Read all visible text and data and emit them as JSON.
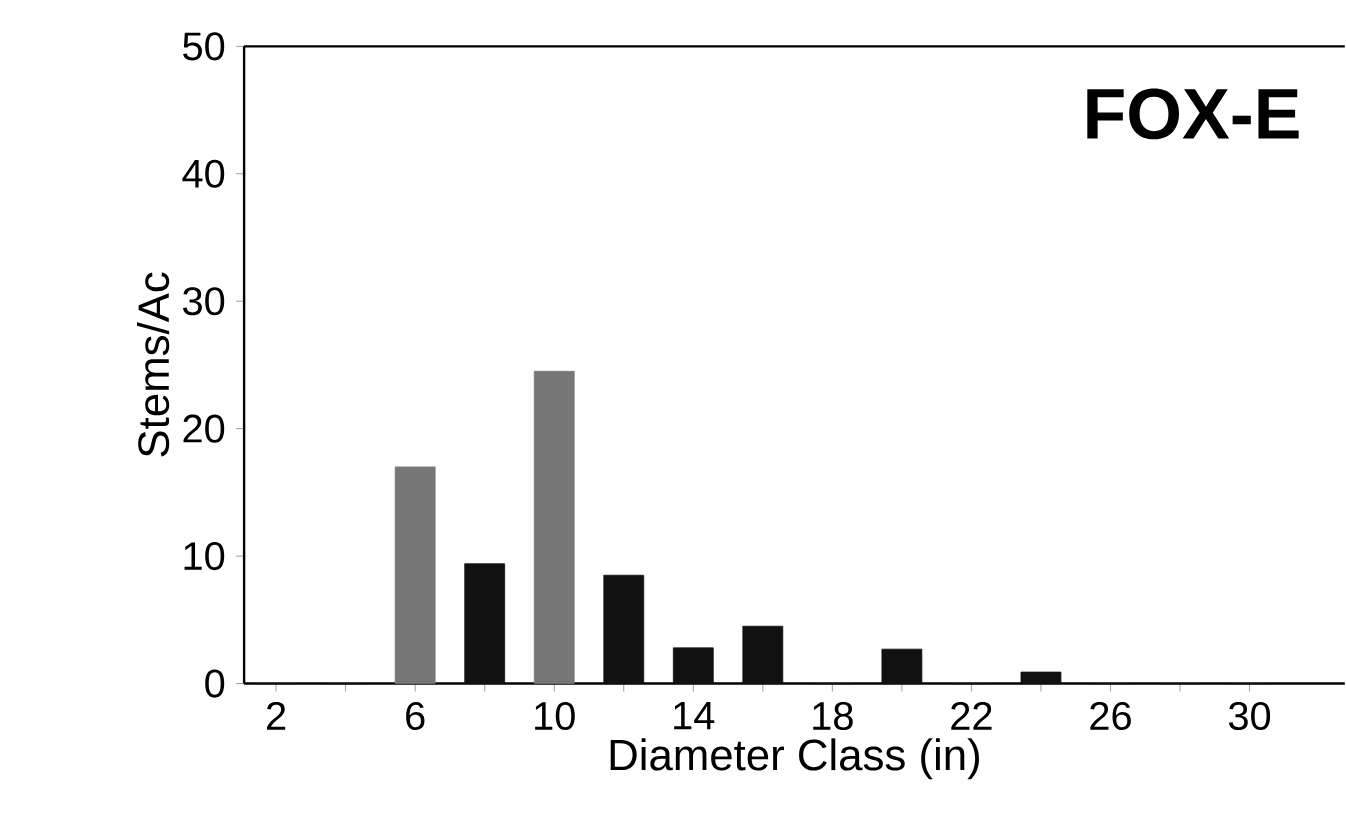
{
  "chart_data": {
    "type": "bar",
    "title": "FOX-E",
    "xlabel": "Diameter Class (in)",
    "ylabel": "Stems/Ac",
    "categories": [
      "2",
      null,
      "6",
      null,
      "10",
      null,
      "14",
      null,
      "18",
      null,
      "22",
      null,
      "26",
      null,
      "30"
    ],
    "values": [
      0,
      0,
      17,
      9.4,
      24.5,
      8.5,
      2.8,
      4.5,
      0,
      2.7,
      0,
      0.9,
      0,
      0,
      0
    ],
    "colors": [
      "#111111",
      "#111111",
      "#777777",
      "#111111",
      "#777777",
      "#111111",
      "#111111",
      "#111111",
      "#111111",
      "#111111",
      "#111111",
      "#111111",
      "#111111",
      "#111111",
      "#111111"
    ],
    "ylim": [
      0,
      50
    ],
    "yticks": [
      0,
      10,
      20,
      30,
      40,
      50
    ]
  }
}
